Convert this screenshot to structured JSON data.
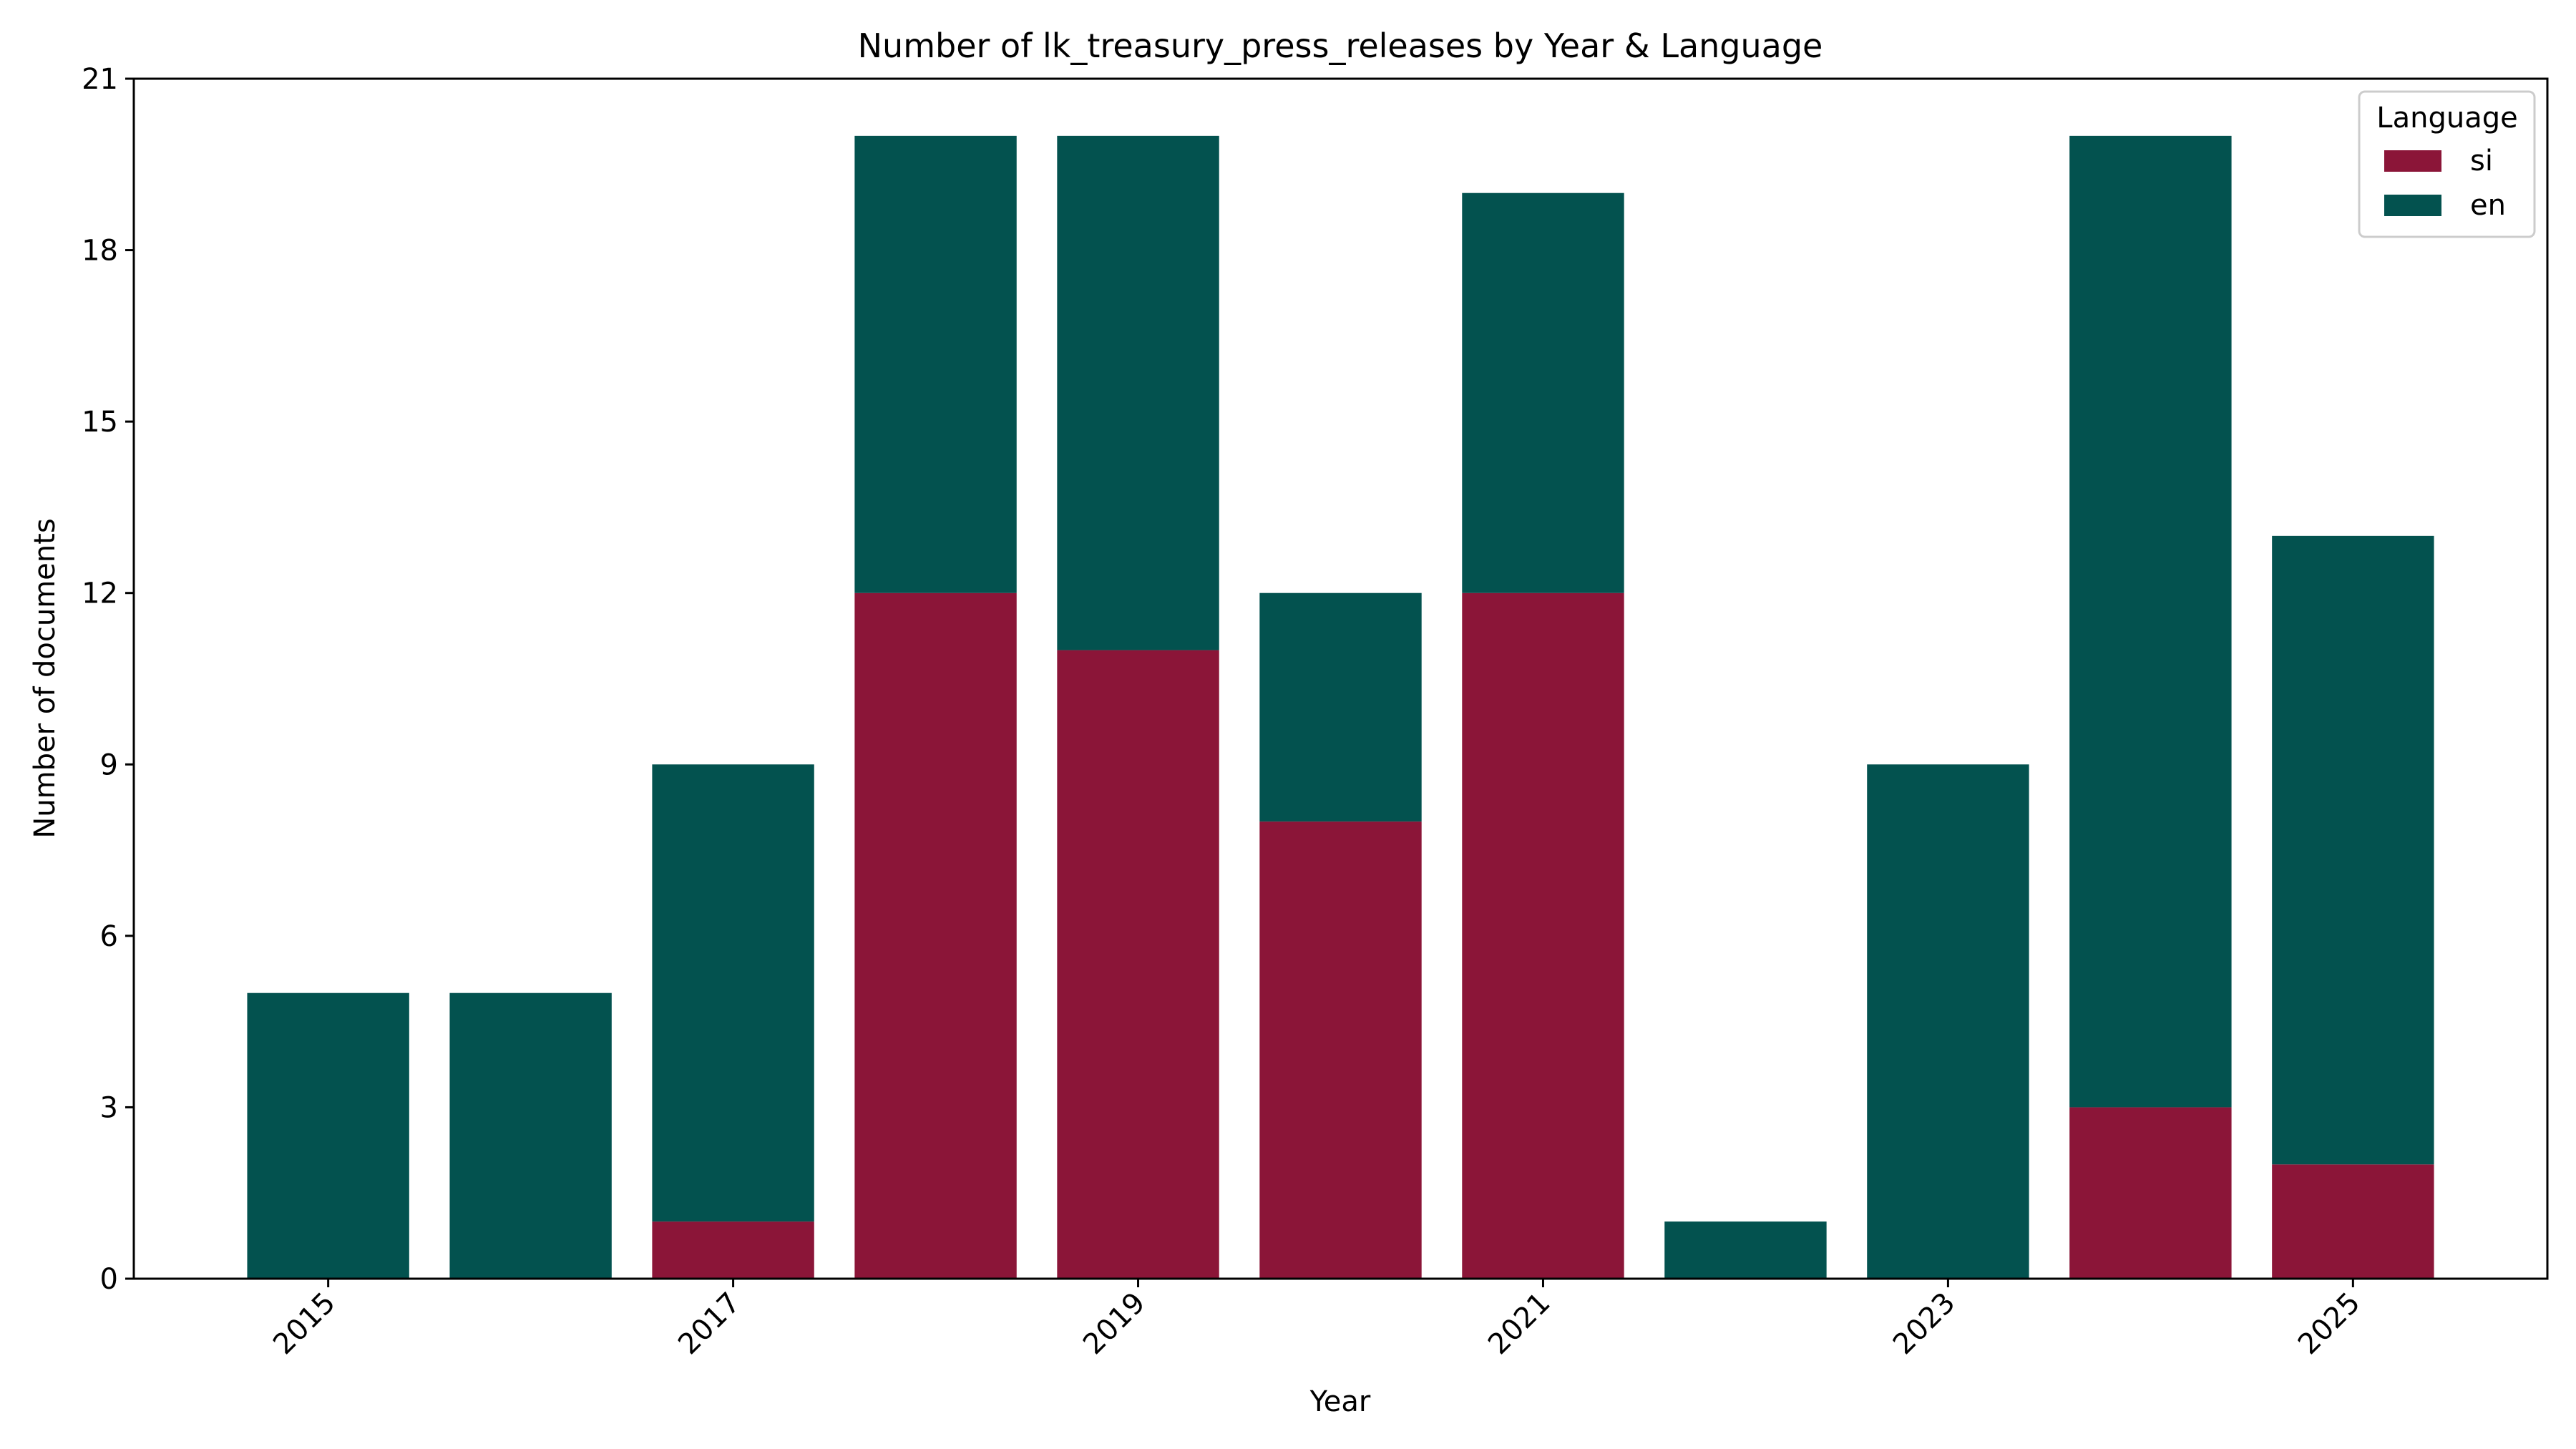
{
  "chart_data": {
    "type": "bar",
    "stacked": true,
    "title": "Number of lk_treasury_press_releases by Year & Language",
    "xlabel": "Year",
    "ylabel": "Number of documents",
    "categories": [
      "2015",
      "2016",
      "2017",
      "2018",
      "2019",
      "2020",
      "2021",
      "2022",
      "2023",
      "2024",
      "2025"
    ],
    "x_tick_labels": [
      "2015",
      "2017",
      "2019",
      "2021",
      "2023",
      "2025"
    ],
    "y_tick_labels": [
      "0",
      "3",
      "6",
      "9",
      "12",
      "15",
      "18",
      "21"
    ],
    "ylim": [
      0,
      21
    ],
    "xlim": [
      2014.04,
      2025.96
    ],
    "grid": false,
    "legend": {
      "title": "Language",
      "position": "top-right"
    },
    "series": [
      {
        "name": "si",
        "color": "#8b1538",
        "values": [
          0,
          0,
          1,
          12,
          11,
          8,
          12,
          0,
          0,
          3,
          2
        ]
      },
      {
        "name": "en",
        "color": "#03524f",
        "values": [
          5,
          5,
          8,
          8,
          9,
          4,
          7,
          1,
          9,
          17,
          11
        ]
      }
    ]
  }
}
